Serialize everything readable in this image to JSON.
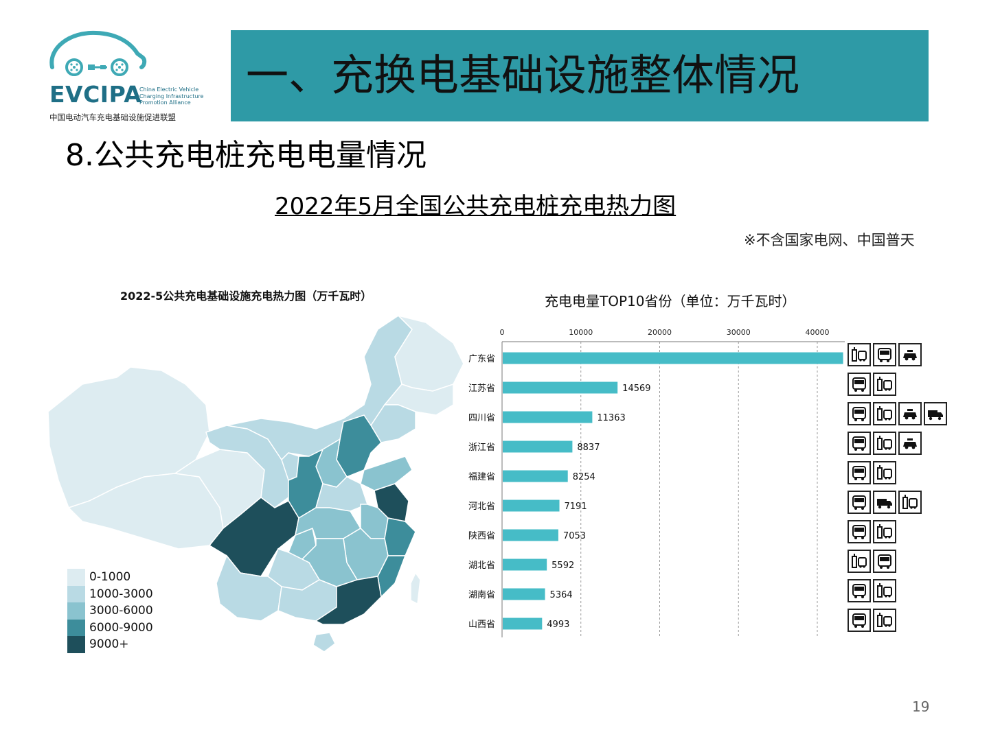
{
  "logo": {
    "name": "EVCIPA",
    "sub_en": [
      "China Electric Vehicle",
      "Charging Infrastructure",
      "Promotion Alliance"
    ],
    "sub_cn": "中国电动汽车充电基础设施促进联盟"
  },
  "banner": {
    "title": "一、充换电基础设施整体情况"
  },
  "section": {
    "title": "8.公共充电桩充电电量情况"
  },
  "main_title": "2022年5月全国公共充电桩充电热力图",
  "note": "※不含国家电网、中国普天",
  "map": {
    "title": "2022-5公共充电基础设施充电热力图（万千瓦时）",
    "legend": [
      {
        "label": "0-1000",
        "color": "#ddecf1"
      },
      {
        "label": "1000-3000",
        "color": "#b9dae4"
      },
      {
        "label": "3000-6000",
        "color": "#8ac3cf"
      },
      {
        "label": "6000-9000",
        "color": "#3d8d9b"
      },
      {
        "label": "9000+",
        "color": "#1e4f5b"
      }
    ]
  },
  "chart_data": {
    "type": "bar",
    "orientation": "horizontal",
    "title": "充电电量TOP10省份（单位：万千瓦时）",
    "categories": [
      "广东省",
      "江苏省",
      "四川省",
      "浙江省",
      "福建省",
      "河北省",
      "陕西省",
      "湖北省",
      "湖南省",
      "山西省"
    ],
    "values": [
      43187,
      14569,
      11363,
      8837,
      8254,
      7191,
      7053,
      5592,
      5364,
      4993
    ],
    "xticks": [
      0,
      10000,
      20000,
      30000,
      40000
    ],
    "xlim": [
      0,
      45000
    ],
    "bar_color": "#46bcc7",
    "axis_position": "top",
    "grid": "vertical dashed"
  },
  "icon_rows": [
    [
      "charger",
      "bus",
      "taxi"
    ],
    [
      "bus",
      "charger"
    ],
    [
      "bus",
      "charger",
      "taxi",
      "truck"
    ],
    [
      "bus",
      "charger",
      "taxi"
    ],
    [
      "bus",
      "charger"
    ],
    [
      "bus",
      "truck",
      "charger"
    ],
    [
      "bus",
      "charger"
    ],
    [
      "charger",
      "bus"
    ],
    [
      "bus",
      "charger"
    ],
    [
      "bus",
      "charger"
    ]
  ],
  "page_number": "19"
}
